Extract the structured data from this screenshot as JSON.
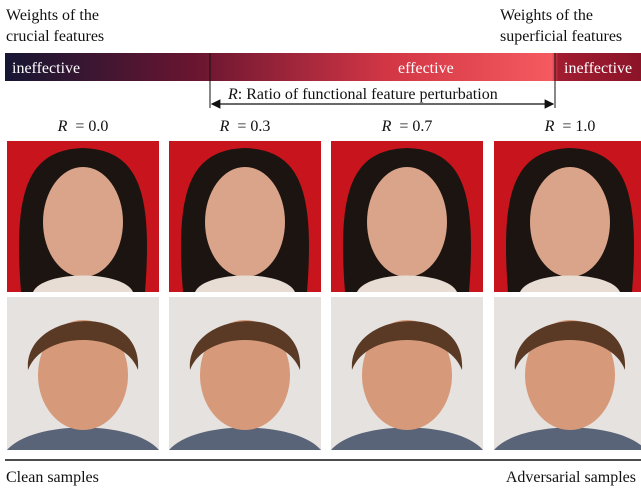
{
  "header": {
    "left_label": [
      "Weights of the",
      "crucial features"
    ],
    "right_label": [
      "Weights of the",
      "superficial features"
    ]
  },
  "bar": {
    "segments": [
      "ineffective",
      "effective",
      "ineffective"
    ],
    "range_symbol": "R",
    "range_label": ": Ratio of functional feature perturbation"
  },
  "columns": [
    {
      "symbol": "R",
      "setting": "=  0.0"
    },
    {
      "symbol": "R",
      "setting": "=  0.3"
    },
    {
      "symbol": "R",
      "setting": "=  0.7"
    },
    {
      "symbol": "R",
      "setting": "= 1.0"
    }
  ],
  "footer": {
    "left": "Clean samples",
    "right": "Adversarial samples"
  }
}
